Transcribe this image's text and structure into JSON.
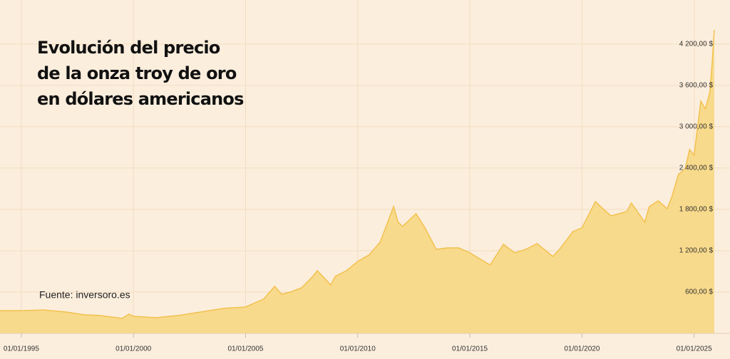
{
  "chart_data": {
    "type": "area",
    "title": [
      "Evolución del precio",
      "de la onza troy de oro",
      "en dólares americanos"
    ],
    "annotation": "Fuente: inversoro.es",
    "color": "#f2c14e",
    "fill": "#f8da8c",
    "grid": true,
    "x": [
      1994.05,
      1995,
      1996,
      1997,
      1997.8,
      1998.5,
      1999.5,
      1999.8,
      2000,
      2001,
      2002,
      2003,
      2004,
      2005,
      2005.8,
      2006.3,
      2006.6,
      2007,
      2007.5,
      2008,
      2008.2,
      2008.8,
      2009,
      2009.5,
      2010,
      2010.5,
      2011,
      2011.6,
      2011.8,
      2012,
      2012.6,
      2013,
      2013.5,
      2014,
      2014.5,
      2015,
      2015.9,
      2016.5,
      2017,
      2017.5,
      2018,
      2018.7,
      2019,
      2019.6,
      2020,
      2020.6,
      2021,
      2021.3,
      2022,
      2022.2,
      2022.8,
      2023,
      2023.4,
      2023.8,
      2024,
      2024.3,
      2024.6,
      2024.8,
      2025,
      2025.3,
      2025.5,
      2025.7,
      2025.8,
      2025.9
    ],
    "values": [
      330,
      330,
      340,
      310,
      270,
      260,
      217,
      280,
      248,
      228,
      260,
      310,
      362,
      383,
      497,
      683,
      569,
      600,
      662,
      828,
      910,
      703,
      828,
      910,
      1045,
      1138,
      1324,
      1841,
      1614,
      1552,
      1738,
      1531,
      1221,
      1241,
      1241,
      1169,
      993,
      1293,
      1169,
      1221,
      1303,
      1117,
      1221,
      1479,
      1531,
      1914,
      1790,
      1707,
      1769,
      1893,
      1614,
      1841,
      1924,
      1810,
      1976,
      2307,
      2390,
      2669,
      2586,
      3372,
      3259,
      3497,
      3910,
      4407
    ],
    "xlim": [
      1994.05,
      2026.6
    ],
    "xticks": [
      {
        "value": 1995,
        "label": "01/01/1995"
      },
      {
        "value": 2000,
        "label": "01/01/2000"
      },
      {
        "value": 2005,
        "label": "01/01/2005"
      },
      {
        "value": 2010,
        "label": "01/01/2010"
      },
      {
        "value": 2015,
        "label": "01/01/2015"
      },
      {
        "value": 2020,
        "label": "01/01/2020"
      },
      {
        "value": 2025,
        "label": "01/01/2025"
      }
    ],
    "ylim": [
      0,
      4840
    ],
    "yticks": [
      {
        "value": 600,
        "label": "600,00 $"
      },
      {
        "value": 1200,
        "label": "1 200,00 $"
      },
      {
        "value": 1800,
        "label": "1 800,00 $"
      },
      {
        "value": 2400,
        "label": "2 400,00 $"
      },
      {
        "value": 3000,
        "label": "3 000,00 $"
      },
      {
        "value": 3600,
        "label": "3 600,00 $"
      },
      {
        "value": 4200,
        "label": "4 200,00 $"
      }
    ]
  }
}
